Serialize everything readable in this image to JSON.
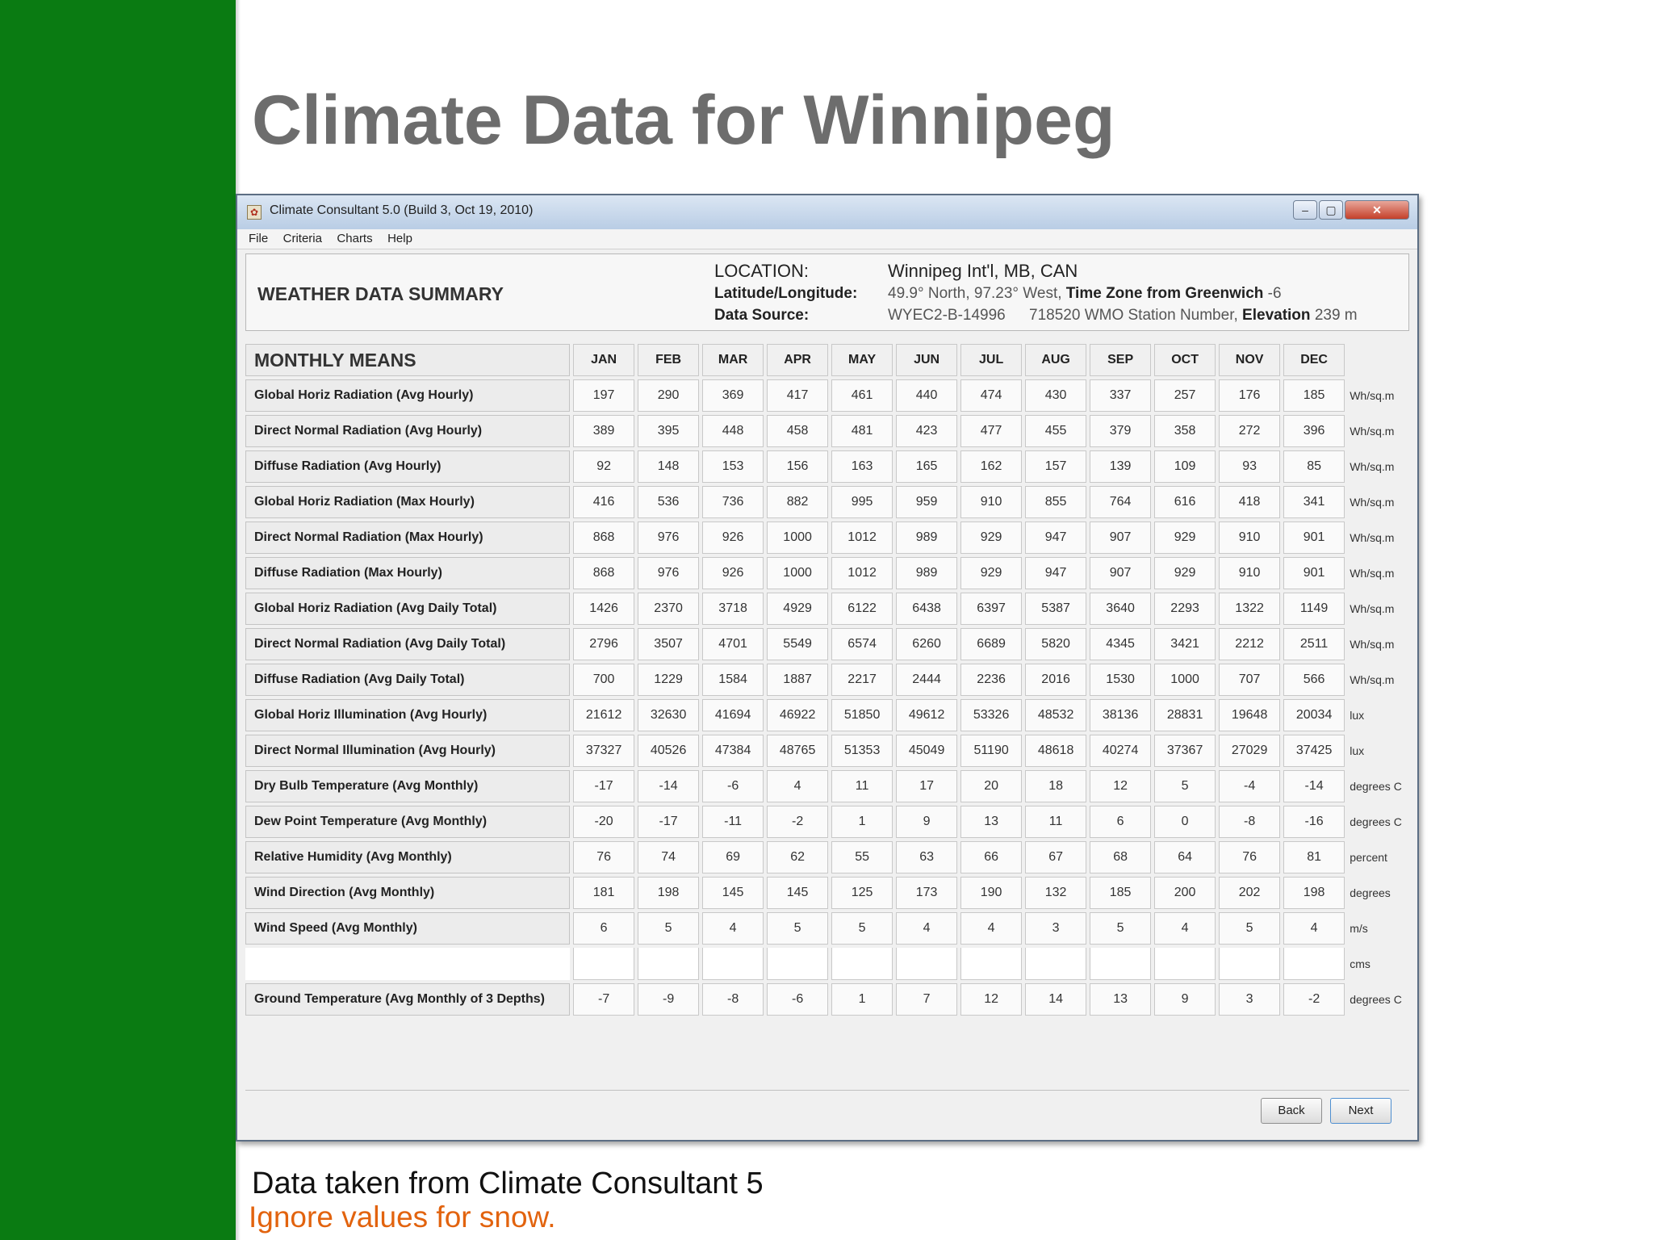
{
  "slide": {
    "title": "Climate Data for Winnipeg",
    "caption": "Data taken from Climate Consultant 5",
    "note": "Ignore values for snow."
  },
  "window": {
    "title": "Climate Consultant 5.0 (Build 3, Oct 19, 2010)",
    "controls": {
      "minimize": "–",
      "maximize": "▢",
      "close": "✕"
    }
  },
  "menu": [
    "File",
    "Criteria",
    "Charts",
    "Help"
  ],
  "summary": {
    "title": "WEATHER DATA SUMMARY",
    "location_label": "LOCATION:",
    "location_value": "Winnipeg Int'l, MB, CAN",
    "latlon_label": "Latitude/Longitude:",
    "latlon_value": "49.9° North, 97.23° West,",
    "timezone_label": "Time Zone from Greenwich",
    "timezone_value": "-6",
    "source_label": "Data Source:",
    "source_value": "WYEC2-B-14996",
    "station_value": "718520 WMO Station Number,",
    "elevation_label": "Elevation",
    "elevation_value": "239 m"
  },
  "table": {
    "header_title": "MONTHLY MEANS",
    "months": [
      "JAN",
      "FEB",
      "MAR",
      "APR",
      "MAY",
      "JUN",
      "JUL",
      "AUG",
      "SEP",
      "OCT",
      "NOV",
      "DEC"
    ],
    "rows": [
      {
        "label": "Global Horiz Radiation (Avg Hourly)",
        "values": [
          "197",
          "290",
          "369",
          "417",
          "461",
          "440",
          "474",
          "430",
          "337",
          "257",
          "176",
          "185"
        ],
        "unit": "Wh/sq.m"
      },
      {
        "label": "Direct Normal Radiation (Avg Hourly)",
        "values": [
          "389",
          "395",
          "448",
          "458",
          "481",
          "423",
          "477",
          "455",
          "379",
          "358",
          "272",
          "396"
        ],
        "unit": "Wh/sq.m"
      },
      {
        "label": "Diffuse Radiation (Avg Hourly)",
        "values": [
          "92",
          "148",
          "153",
          "156",
          "163",
          "165",
          "162",
          "157",
          "139",
          "109",
          "93",
          "85"
        ],
        "unit": "Wh/sq.m"
      },
      {
        "label": "Global Horiz Radiation (Max Hourly)",
        "values": [
          "416",
          "536",
          "736",
          "882",
          "995",
          "959",
          "910",
          "855",
          "764",
          "616",
          "418",
          "341"
        ],
        "unit": "Wh/sq.m"
      },
      {
        "label": "Direct Normal Radiation (Max Hourly)",
        "values": [
          "868",
          "976",
          "926",
          "1000",
          "1012",
          "989",
          "929",
          "947",
          "907",
          "929",
          "910",
          "901"
        ],
        "unit": "Wh/sq.m"
      },
      {
        "label": "Diffuse Radiation (Max Hourly)",
        "values": [
          "868",
          "976",
          "926",
          "1000",
          "1012",
          "989",
          "929",
          "947",
          "907",
          "929",
          "910",
          "901"
        ],
        "unit": "Wh/sq.m"
      },
      {
        "label": "Global Horiz Radiation (Avg Daily Total)",
        "values": [
          "1426",
          "2370",
          "3718",
          "4929",
          "6122",
          "6438",
          "6397",
          "5387",
          "3640",
          "2293",
          "1322",
          "1149"
        ],
        "unit": "Wh/sq.m"
      },
      {
        "label": "Direct Normal Radiation (Avg Daily Total)",
        "values": [
          "2796",
          "3507",
          "4701",
          "5549",
          "6574",
          "6260",
          "6689",
          "5820",
          "4345",
          "3421",
          "2212",
          "2511"
        ],
        "unit": "Wh/sq.m"
      },
      {
        "label": "Diffuse Radiation (Avg Daily Total)",
        "values": [
          "700",
          "1229",
          "1584",
          "1887",
          "2217",
          "2444",
          "2236",
          "2016",
          "1530",
          "1000",
          "707",
          "566"
        ],
        "unit": "Wh/sq.m"
      },
      {
        "label": "Global Horiz Illumination (Avg Hourly)",
        "values": [
          "21612",
          "32630",
          "41694",
          "46922",
          "51850",
          "49612",
          "53326",
          "48532",
          "38136",
          "28831",
          "19648",
          "20034"
        ],
        "unit": "lux"
      },
      {
        "label": "Direct Normal Illumination (Avg Hourly)",
        "values": [
          "37327",
          "40526",
          "47384",
          "48765",
          "51353",
          "45049",
          "51190",
          "48618",
          "40274",
          "37367",
          "27029",
          "37425"
        ],
        "unit": "lux"
      },
      {
        "label": "Dry Bulb Temperature (Avg Monthly)",
        "values": [
          "-17",
          "-14",
          "-6",
          "4",
          "11",
          "17",
          "20",
          "18",
          "12",
          "5",
          "-4",
          "-14"
        ],
        "unit": "degrees C"
      },
      {
        "label": "Dew Point Temperature (Avg Monthly)",
        "values": [
          "-20",
          "-17",
          "-11",
          "-2",
          "1",
          "9",
          "13",
          "11",
          "6",
          "0",
          "-8",
          "-16"
        ],
        "unit": "degrees C"
      },
      {
        "label": "Relative Humidity (Avg Monthly)",
        "values": [
          "76",
          "74",
          "69",
          "62",
          "55",
          "63",
          "66",
          "67",
          "68",
          "64",
          "76",
          "81"
        ],
        "unit": "percent"
      },
      {
        "label": "Wind Direction (Avg Monthly)",
        "values": [
          "181",
          "198",
          "145",
          "145",
          "125",
          "173",
          "190",
          "132",
          "185",
          "200",
          "202",
          "198"
        ],
        "unit": "degrees"
      },
      {
        "label": "Wind Speed (Avg Monthly)",
        "values": [
          "6",
          "5",
          "4",
          "5",
          "5",
          "4",
          "4",
          "3",
          "5",
          "4",
          "5",
          "4"
        ],
        "unit": "m/s"
      }
    ],
    "snow_row": {
      "unit": "cms"
    },
    "ground_row": {
      "label": "Ground Temperature (Avg Monthly of 3 Depths)",
      "values": [
        "-7",
        "-9",
        "-8",
        "-6",
        "1",
        "7",
        "12",
        "14",
        "13",
        "9",
        "3",
        "-2"
      ],
      "unit": "degrees C"
    }
  },
  "buttons": {
    "back": "Back",
    "next": "Next"
  }
}
